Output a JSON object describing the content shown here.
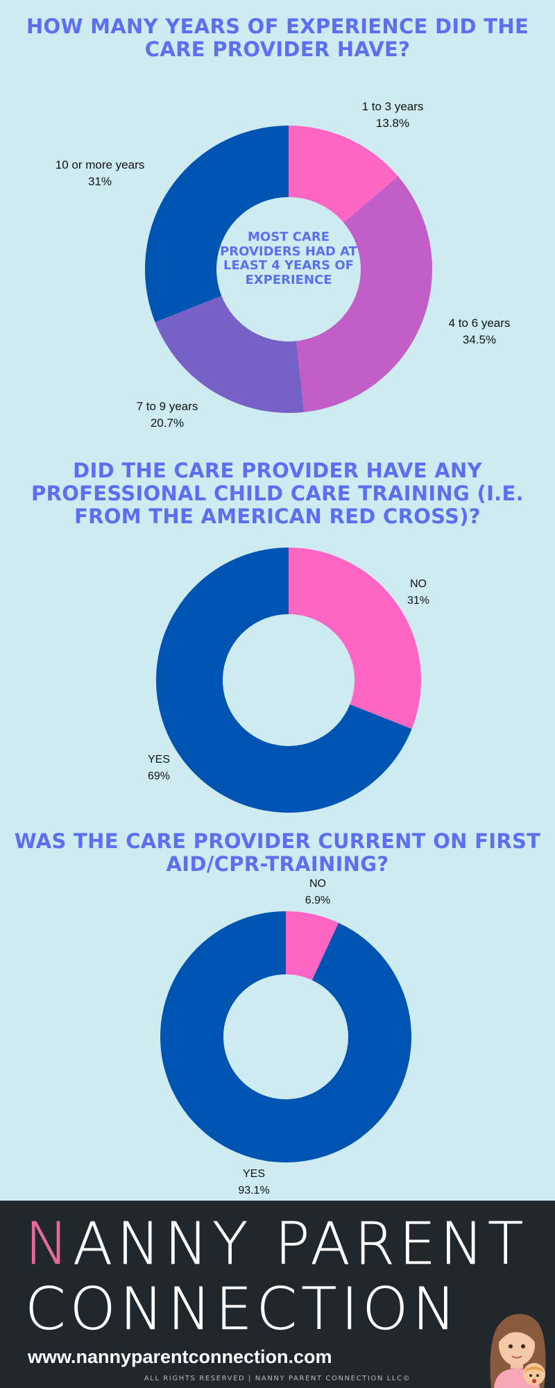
{
  "colors": {
    "background": "#cdebf1",
    "title": "#5b6ff0",
    "pink": "#ff66c4",
    "orchid": "#c15ec8",
    "purple": "#7760c6",
    "blue": "#0054b1",
    "footer": "#21282d",
    "brand_accent": "#e46a9c"
  },
  "chart_data": [
    {
      "type": "pie",
      "title": "HOW MANY YEARS OF EXPERIENCE DID THE CARE PROVIDER HAVE?",
      "center_text": "MOST CARE PROVIDERS HAD AT LEAST 4 YEARS OF EXPERIENCE",
      "categories": [
        "1 to 3 years",
        "4 to 6 years",
        "7 to 9 years",
        "10 or more years"
      ],
      "values": [
        13.8,
        34.5,
        20.7,
        31
      ],
      "value_labels": [
        "13.8%",
        "34.5%",
        "20.7%",
        "31%"
      ],
      "colors": [
        "#ff66c4",
        "#c15ec8",
        "#7760c6",
        "#0054b1"
      ]
    },
    {
      "type": "pie",
      "title": "DID THE CARE PROVIDER HAVE ANY PROFESSIONAL CHILD CARE TRAINING (I.E. FROM THE AMERICAN RED CROSS)?",
      "categories": [
        "NO",
        "YES"
      ],
      "values": [
        31,
        69
      ],
      "value_labels": [
        "31%",
        "69%"
      ],
      "colors": [
        "#ff66c4",
        "#0054b1"
      ]
    },
    {
      "type": "pie",
      "title": "WAS THE CARE PROVIDER CURRENT ON FIRST AID/CPR-TRAINING?",
      "categories": [
        "NO",
        "YES"
      ],
      "values": [
        6.9,
        93.1
      ],
      "value_labels": [
        "6.9%",
        "93.1%"
      ],
      "colors": [
        "#ff66c4",
        "#0054b1"
      ]
    }
  ],
  "footer": {
    "brand_initial": "N",
    "brand_line1_rest": "ANNY PARENT",
    "brand_line2": "CONNECTION",
    "url": "www.nannyparentconnection.com",
    "copyright": "ALL RIGHTS RESERVED | NANNY PARENT CONNECTION LLC©"
  }
}
